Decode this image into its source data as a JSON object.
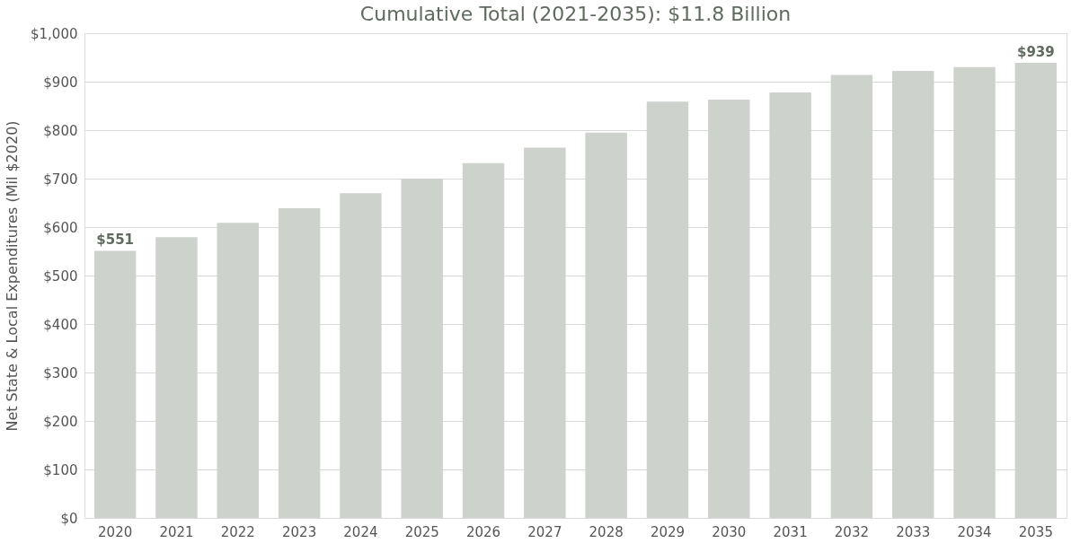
{
  "chart_data": {
    "type": "bar",
    "title": "Cumulative Total (2021-2035): $11.8 Billion",
    "ylabel": "Net State & Local Expenditures (Mil $2020)",
    "categories": [
      "2020",
      "2021",
      "2022",
      "2023",
      "2024",
      "2025",
      "2026",
      "2027",
      "2028",
      "2029",
      "2030",
      "2031",
      "2032",
      "2033",
      "2034",
      "2035"
    ],
    "values": [
      551,
      579,
      609,
      639,
      670,
      700,
      732,
      764,
      795,
      859,
      863,
      878,
      914,
      922,
      930,
      939
    ],
    "value_labels": [
      "$551",
      null,
      null,
      null,
      null,
      null,
      null,
      null,
      null,
      null,
      null,
      null,
      null,
      null,
      null,
      "$939"
    ],
    "color": "#cdd2cc",
    "ylim": [
      0,
      1000
    ],
    "yticks": [
      {
        "value": 0,
        "label": "$0"
      },
      {
        "value": 100,
        "label": "$100"
      },
      {
        "value": 200,
        "label": "$200"
      },
      {
        "value": 300,
        "label": "$300"
      },
      {
        "value": 400,
        "label": "$400"
      },
      {
        "value": 500,
        "label": "$500"
      },
      {
        "value": 600,
        "label": "$600"
      },
      {
        "value": 700,
        "label": "$700"
      },
      {
        "value": 800,
        "label": "$800"
      },
      {
        "value": 900,
        "label": "$900"
      },
      {
        "value": 1000,
        "label": "$1,000"
      }
    ],
    "grid": "y"
  }
}
